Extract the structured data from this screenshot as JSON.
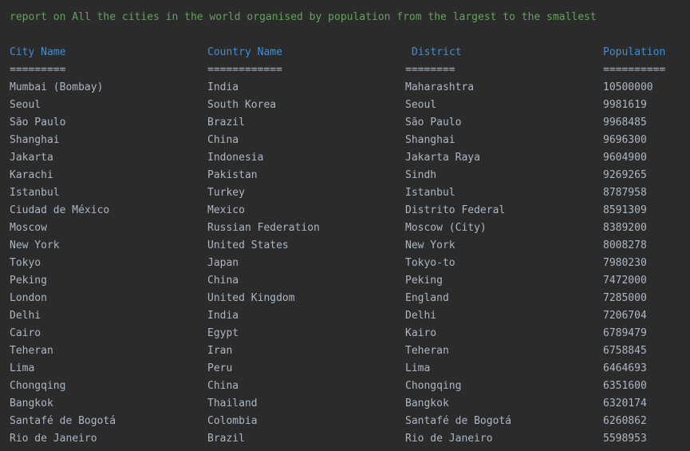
{
  "report_title": "report on All the cities in the world organised by population from the largest to the smallest",
  "colors": {
    "background": "#2b2b2b",
    "title": "#62a35c",
    "header": "#3d8fd9",
    "text": "#a9b7c6"
  },
  "headers": [
    "City Name",
    "Country Name",
    "District",
    "Population"
  ],
  "separators": [
    "=========",
    "============",
    "========",
    "=========="
  ],
  "rows": [
    [
      "Mumbai (Bombay)",
      "India",
      "Maharashtra",
      "10500000"
    ],
    [
      "Seoul",
      "South Korea",
      "Seoul",
      "9981619"
    ],
    [
      "São Paulo",
      "Brazil",
      "São Paulo",
      "9968485"
    ],
    [
      "Shanghai",
      "China",
      "Shanghai",
      "9696300"
    ],
    [
      "Jakarta",
      "Indonesia",
      "Jakarta Raya",
      "9604900"
    ],
    [
      "Karachi",
      "Pakistan",
      "Sindh",
      "9269265"
    ],
    [
      "Istanbul",
      "Turkey",
      "Istanbul",
      "8787958"
    ],
    [
      "Ciudad de México",
      "Mexico",
      "Distrito Federal",
      "8591309"
    ],
    [
      "Moscow",
      "Russian Federation",
      "Moscow (City)",
      "8389200"
    ],
    [
      "New York",
      "United States",
      "New York",
      "8008278"
    ],
    [
      "Tokyo",
      "Japan",
      "Tokyo-to",
      "7980230"
    ],
    [
      "Peking",
      "China",
      "Peking",
      "7472000"
    ],
    [
      "London",
      "United Kingdom",
      "England",
      "7285000"
    ],
    [
      "Delhi",
      "India",
      "Delhi",
      "7206704"
    ],
    [
      "Cairo",
      "Egypt",
      "Kairo",
      "6789479"
    ],
    [
      "Teheran",
      "Iran",
      "Teheran",
      "6758845"
    ],
    [
      "Lima",
      "Peru",
      "Lima",
      "6464693"
    ],
    [
      "Chongqing",
      "China",
      "Chongqing",
      "6351600"
    ],
    [
      "Bangkok",
      "Thailand",
      "Bangkok",
      "6320174"
    ],
    [
      "Santafé de Bogotá",
      "Colombia",
      "Santafé de Bogotá",
      "6260862"
    ],
    [
      "Rio de Janeiro",
      "Brazil",
      "Rio de Janeiro",
      "5598953"
    ]
  ]
}
